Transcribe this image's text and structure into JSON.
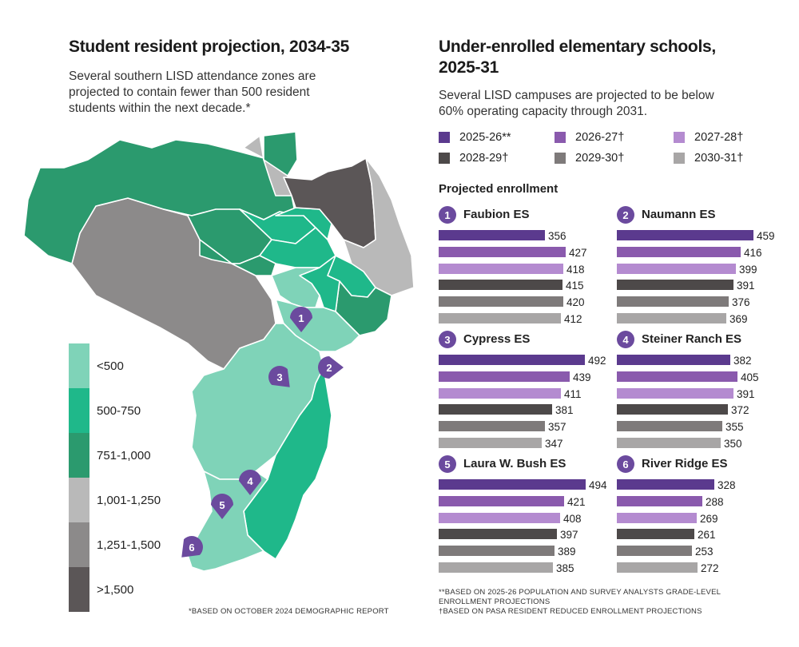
{
  "left": {
    "title": "Student resident projection, 2034-35",
    "subtitle_lines": [
      "Several southern LISD attendance zones are",
      "projected to contain fewer than 500 resident",
      "students within the next decade.*"
    ],
    "footnote": "*BASED ON OCTOBER 2024 DEMOGRAPHIC REPORT",
    "legend": [
      {
        "label": "<500",
        "color": "#7fd3b8"
      },
      {
        "label": "500-750",
        "color": "#1fb88a"
      },
      {
        "label": "751-1,000",
        "color": "#2b9a6e"
      },
      {
        "label": "1,001-1,250",
        "color": "#b9b9b9"
      },
      {
        "label": "1,251-1,500",
        "color": "#8c8a8a"
      },
      {
        "label": ">1,500",
        "color": "#5b5657"
      }
    ],
    "map_pins": [
      "1",
      "2",
      "3",
      "4",
      "5",
      "6"
    ]
  },
  "right": {
    "title_lines": [
      "Under-enrolled elementary schools,",
      "2025-31"
    ],
    "subtitle_lines": [
      "Several LISD campuses are projected to be below",
      "60% operating capacity through 2031."
    ],
    "section_label": "Projected enrollment",
    "footnote_lines": [
      "**BASED ON 2025-26 POPULATION AND SURVEY ANALYSTS GRADE-LEVEL",
      "ENROLLMENT PROJECTIONS",
      "†BASED ON PASA RESIDENT REDUCED ENROLLMENT PROJECTIONS"
    ]
  },
  "chart_data": {
    "type": "bar",
    "categories": [
      "2025-26**",
      "2026-27†",
      "2027-28†",
      "2028-29†",
      "2029-30†",
      "2030-31†"
    ],
    "series_colors": [
      "#5b3a8e",
      "#8a5aad",
      "#b48bd0",
      "#4d4949",
      "#7e7a7a",
      "#a8a6a6"
    ],
    "ylabel": "Projected enrollment",
    "schools": [
      {
        "num": "1",
        "name": "Faubion ES",
        "values": [
          356,
          427,
          418,
          415,
          420,
          412
        ]
      },
      {
        "num": "2",
        "name": "Naumann ES",
        "values": [
          459,
          416,
          399,
          391,
          376,
          369
        ]
      },
      {
        "num": "3",
        "name": "Cypress ES",
        "values": [
          492,
          439,
          411,
          381,
          357,
          347
        ]
      },
      {
        "num": "4",
        "name": "Steiner Ranch ES",
        "values": [
          382,
          405,
          391,
          372,
          355,
          350
        ]
      },
      {
        "num": "5",
        "name": "Laura W. Bush ES",
        "values": [
          494,
          421,
          408,
          397,
          389,
          385
        ]
      },
      {
        "num": "6",
        "name": "River Ridge ES",
        "values": [
          328,
          288,
          269,
          261,
          253,
          272
        ]
      }
    ]
  }
}
